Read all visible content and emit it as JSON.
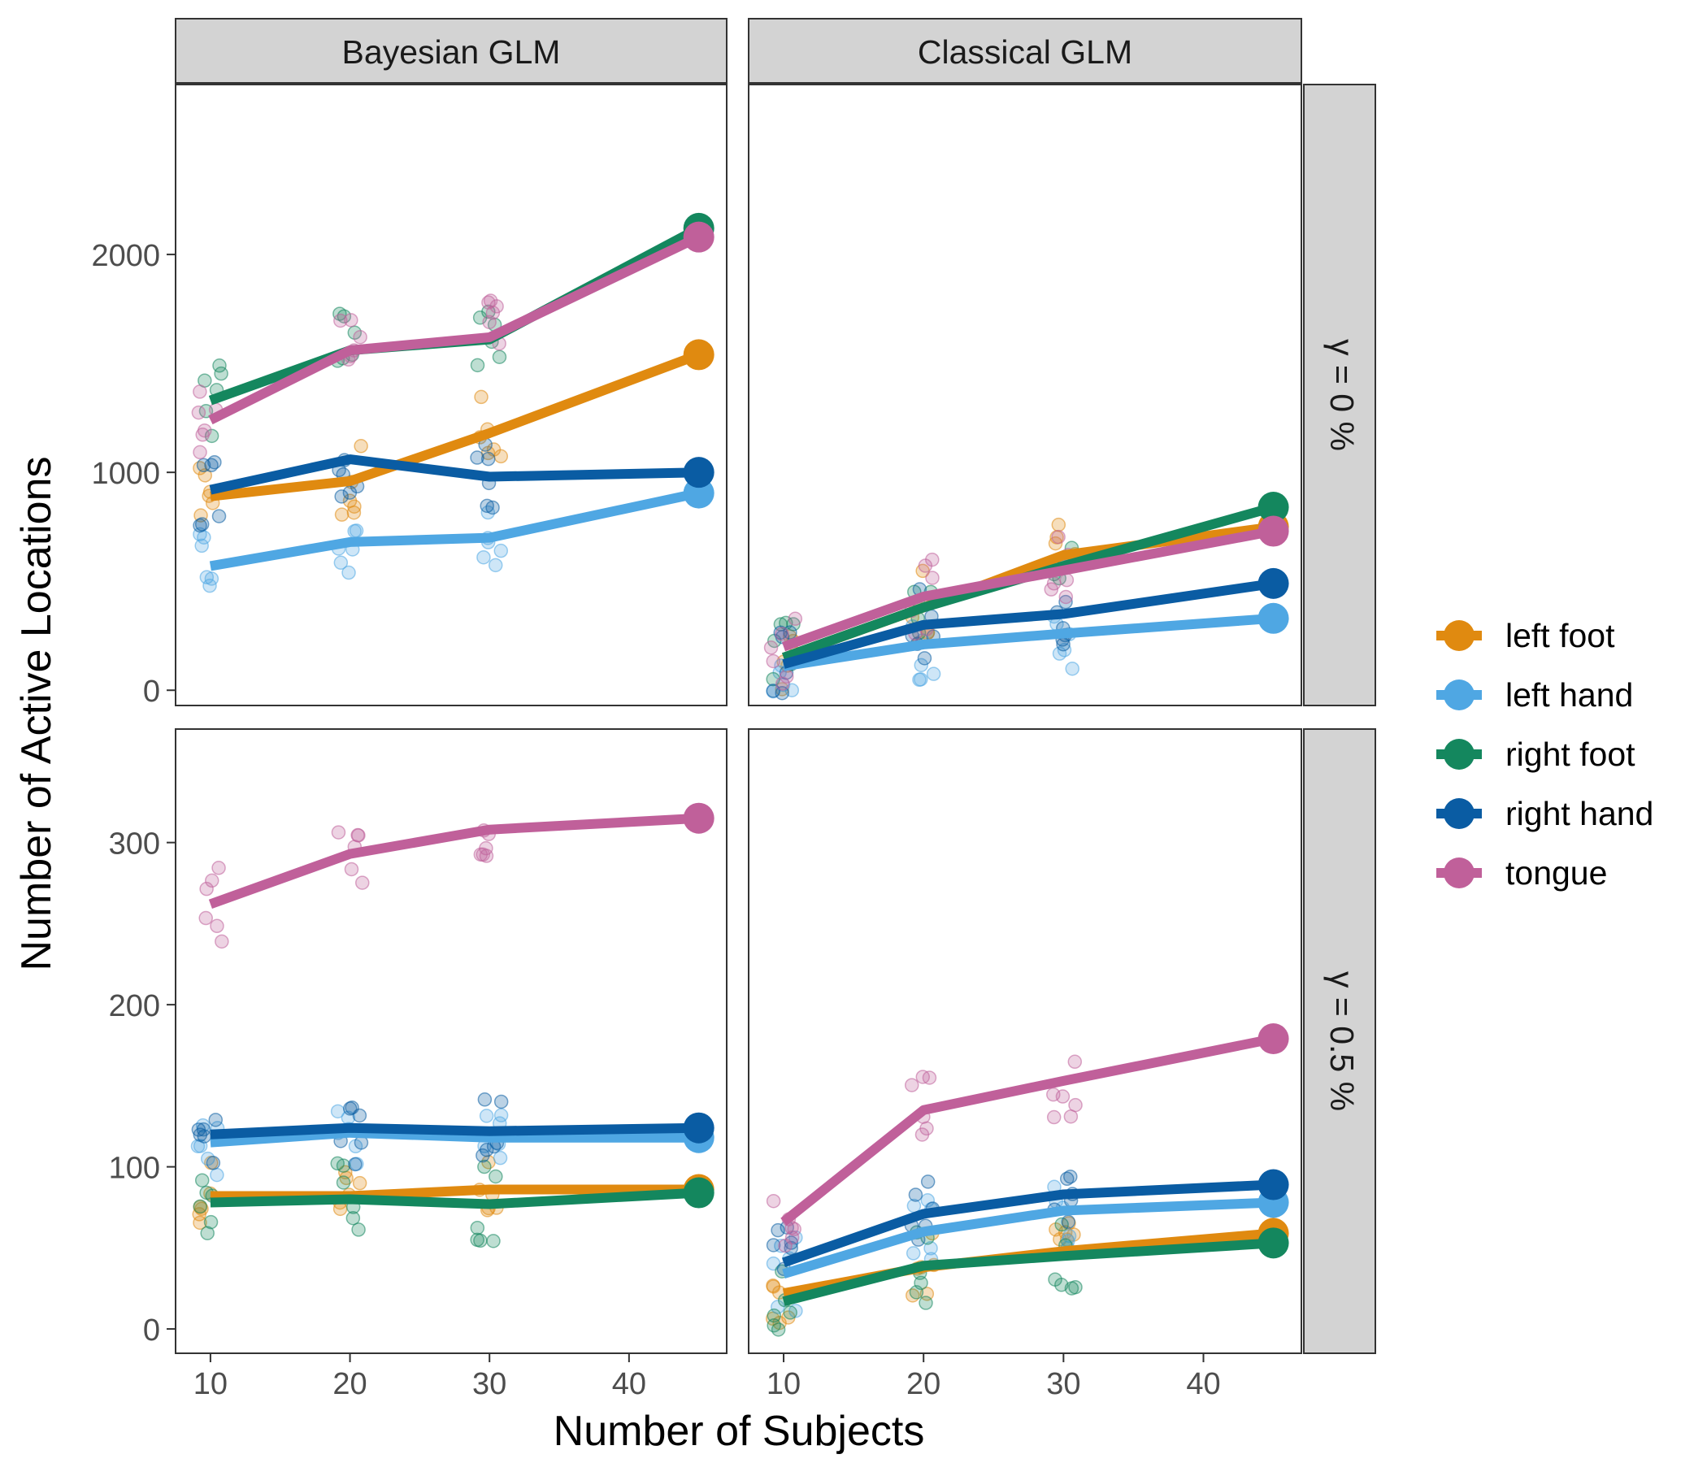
{
  "chart_data": {
    "type": "line",
    "title": "",
    "xlabel": "Number of Subjects",
    "ylabel": "Number of Active Locations",
    "facet_columns": [
      "Bayesian GLM",
      "Classical GLM"
    ],
    "facet_rows": [
      "γ = 0 %",
      "γ = 0.5 %"
    ],
    "x_ticks": [
      10,
      20,
      30,
      40
    ],
    "xlim": [
      7.5,
      47
    ],
    "x": [
      10,
      20,
      30,
      45
    ],
    "legend": {
      "position": "right",
      "entries": [
        "left foot",
        "left hand",
        "right foot",
        "right hand",
        "tongue"
      ]
    },
    "series_colors": {
      "left foot": "#E08A10",
      "left hand": "#4FA7E3",
      "right foot": "#14875E",
      "right hand": "#0A5CA3",
      "tongue": "#C0609A"
    },
    "rows": [
      {
        "label": "γ = 0 %",
        "ylim": [
          -70,
          2780
        ],
        "y_ticks": [
          0,
          1000,
          2000
        ],
        "panels": [
          {
            "facet": "Bayesian GLM",
            "series": [
              {
                "name": "left foot",
                "values": [
                  890,
                  960,
                  1180,
                  1540
                ]
              },
              {
                "name": "left hand",
                "values": [
                  570,
                  680,
                  700,
                  905
                ]
              },
              {
                "name": "right foot",
                "values": [
                  1330,
                  1560,
                  1610,
                  2120
                ]
              },
              {
                "name": "right hand",
                "values": [
                  920,
                  1060,
                  980,
                  1000
                ]
              },
              {
                "name": "tongue",
                "values": [
                  1240,
                  1560,
                  1620,
                  2080
                ]
              }
            ]
          },
          {
            "facet": "Classical GLM",
            "series": [
              {
                "name": "left foot",
                "values": [
                  150,
                  380,
                  620,
                  750
                ]
              },
              {
                "name": "left hand",
                "values": [
                  110,
                  210,
                  260,
                  330
                ]
              },
              {
                "name": "right foot",
                "values": [
                  150,
                  380,
                  570,
                  840
                ]
              },
              {
                "name": "right hand",
                "values": [
                  120,
                  300,
                  350,
                  490
                ]
              },
              {
                "name": "tongue",
                "values": [
                  200,
                  430,
                  550,
                  730
                ]
              }
            ]
          }
        ]
      },
      {
        "label": "γ = 0.5 %",
        "ylim": [
          -15,
          370
        ],
        "y_ticks": [
          0,
          100,
          200,
          300
        ],
        "panels": [
          {
            "facet": "Bayesian GLM",
            "series": [
              {
                "name": "left foot",
                "values": [
                  82,
                  82,
                  86,
                  86
                ]
              },
              {
                "name": "left hand",
                "values": [
                  115,
                  121,
                  118,
                  118
                ]
              },
              {
                "name": "right foot",
                "values": [
                  78,
                  80,
                  77,
                  84
                ]
              },
              {
                "name": "right hand",
                "values": [
                  120,
                  124,
                  122,
                  124
                ]
              },
              {
                "name": "tongue",
                "values": [
                  262,
                  293,
                  308,
                  315
                ]
              }
            ]
          },
          {
            "facet": "Classical GLM",
            "series": [
              {
                "name": "left foot",
                "values": [
                  22,
                  38,
                  48,
                  59
                ]
              },
              {
                "name": "left hand",
                "values": [
                  34,
                  60,
                  73,
                  78
                ]
              },
              {
                "name": "right foot",
                "values": [
                  17,
                  39,
                  45,
                  53
                ]
              },
              {
                "name": "right hand",
                "values": [
                  41,
                  71,
                  83,
                  89
                ]
              },
              {
                "name": "tongue",
                "values": [
                  66,
                  135,
                  153,
                  179
                ]
              }
            ]
          }
        ]
      }
    ]
  }
}
